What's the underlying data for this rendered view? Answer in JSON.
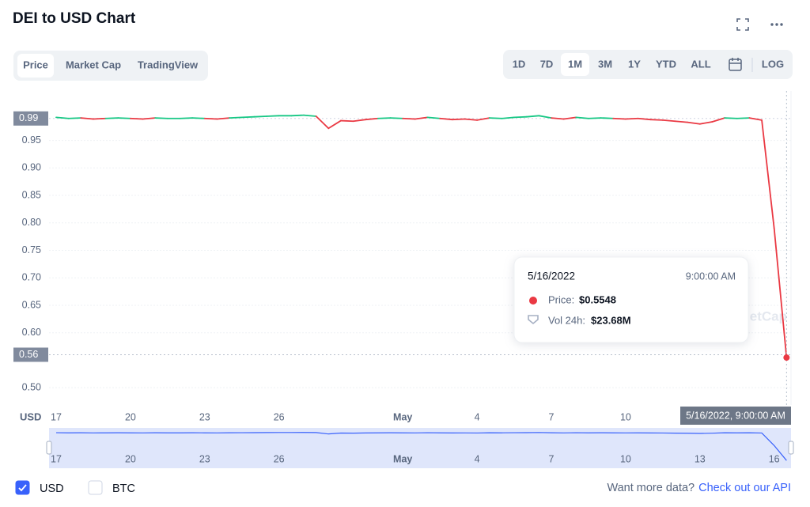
{
  "header": {
    "title": "DEI to USD Chart"
  },
  "tabs": [
    "Price",
    "Market Cap",
    "TradingView"
  ],
  "active_tab": "Price",
  "ranges": [
    "1D",
    "7D",
    "1M",
    "3M",
    "1Y",
    "YTD",
    "ALL",
    "LOG"
  ],
  "active_range": "1M",
  "chart_data": {
    "type": "line",
    "axis_label": "USD",
    "categories": [
      "17",
      null,
      null,
      null,
      null,
      null,
      "20",
      null,
      null,
      null,
      null,
      null,
      "23",
      null,
      null,
      null,
      null,
      null,
      "26",
      null,
      null,
      null,
      null,
      null,
      null,
      null,
      null,
      null,
      "May",
      null,
      null,
      null,
      null,
      null,
      "4",
      null,
      null,
      null,
      null,
      null,
      "7",
      null,
      null,
      null,
      null,
      null,
      "10",
      null,
      null,
      null,
      null,
      null,
      "13",
      null,
      null,
      null,
      null,
      null,
      "16",
      null
    ],
    "series": [
      {
        "name": "Price",
        "color": "#16c784",
        "down_color": "#ea3943",
        "values": [
          0.992,
          0.99,
          0.991,
          0.989,
          0.99,
          0.991,
          0.99,
          0.989,
          0.991,
          0.99,
          0.99,
          0.991,
          0.99,
          0.989,
          0.991,
          0.992,
          0.993,
          0.994,
          0.995,
          0.995,
          0.996,
          0.994,
          0.972,
          0.986,
          0.985,
          0.988,
          0.99,
          0.991,
          0.99,
          0.989,
          0.992,
          0.99,
          0.988,
          0.989,
          0.987,
          0.991,
          0.99,
          0.992,
          0.993,
          0.995,
          0.991,
          0.989,
          0.992,
          0.99,
          0.991,
          0.99,
          0.989,
          0.99,
          0.988,
          0.987,
          0.985,
          0.983,
          0.98,
          0.984,
          0.991,
          0.99,
          0.991,
          0.987,
          0.79,
          0.5548
        ]
      }
    ],
    "open_price": 0.99,
    "current_price": 0.56,
    "ylim": [
      0.47,
      1.03
    ],
    "yticks": [
      {
        "value": 0.5,
        "label": "0.50"
      },
      {
        "value": 0.6,
        "label": "0.60"
      },
      0.65,
      {
        "value": 0.7,
        "label": "0.70"
      },
      0.75,
      {
        "value": 0.8,
        "label": "0.80"
      },
      0.85,
      {
        "value": 0.9,
        "label": "0.90"
      },
      0.95
    ],
    "grid": true,
    "crosshair_label": "5/16/2022, 9:00:00 AM",
    "watermark": "etCap"
  },
  "tooltip": {
    "date": "5/16/2022",
    "time": "9:00:00 AM",
    "price_label": "Price:",
    "price": "$0.5548",
    "volume_label": "Vol 24h:",
    "volume": "$23.68M"
  },
  "footer": {
    "currencies": [
      "USD",
      "BTC"
    ],
    "checked": "USD",
    "prompt": "Want more data?",
    "link": "Check out our API"
  }
}
